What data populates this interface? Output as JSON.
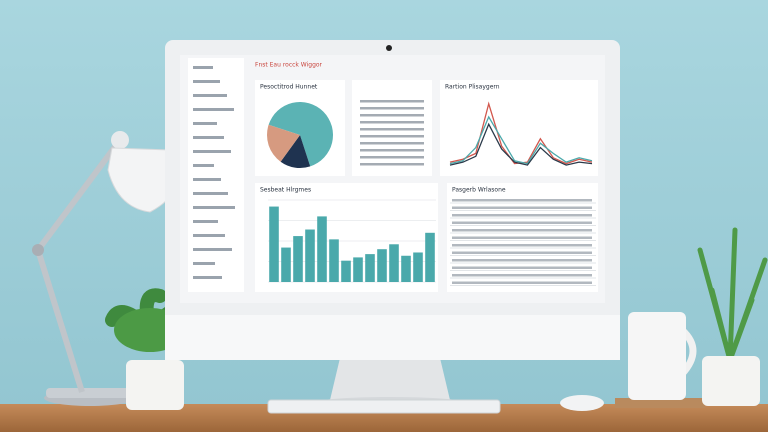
{
  "screen": {
    "title": "Fnst Eau rocck Wiggor",
    "panels": [
      "Pesoctitrod Hunnet",
      "Rartion Plisaygern",
      "Sesbeat Hlrgmes",
      "Pasgerb Wrlasone"
    ],
    "charts": [
      {
        "type": "pie",
        "values": [
          65,
          15,
          20
        ],
        "colors": [
          "#5bb3b4",
          "#1f3350",
          "#d69a80"
        ]
      },
      {
        "type": "line",
        "ylim": [
          0,
          100
        ],
        "series": [
          {
            "color": "#d2574d",
            "values": [
              8,
              12,
              20,
              88,
              30,
              6,
              8,
              40,
              14,
              6,
              12,
              8
            ]
          },
          {
            "color": "#4aa9ab",
            "values": [
              6,
              10,
              28,
              70,
              40,
              10,
              6,
              34,
              20,
              8,
              14,
              10
            ]
          },
          {
            "color": "#2a3a4a",
            "values": [
              4,
              8,
              16,
              60,
              26,
              8,
              4,
              28,
              12,
              4,
              8,
              6
            ]
          }
        ]
      },
      {
        "type": "bar",
        "ylim": [
          0,
          100
        ],
        "color": "#4aa9ab",
        "values": [
          92,
          42,
          56,
          64,
          80,
          52,
          26,
          30,
          34,
          40,
          46,
          32,
          36,
          60
        ]
      }
    ]
  }
}
